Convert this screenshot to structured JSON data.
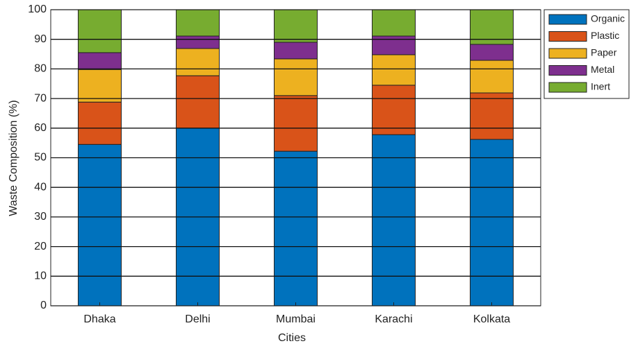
{
  "chart_data": {
    "type": "stacked_bar",
    "x_label": "Cities",
    "y_label": "Waste Composition (%)",
    "categories": [
      "Dhaka",
      "Delhi",
      "Mumbai",
      "Karachi",
      "Kolkata"
    ],
    "series": [
      {
        "name": "Organic",
        "color": "#0072BD",
        "values": [
          54.5,
          60,
          52.2,
          57.8,
          56.2
        ]
      },
      {
        "name": "Plastic",
        "color": "#D95319",
        "values": [
          14.3,
          17.7,
          18.8,
          16.7,
          15.7
        ]
      },
      {
        "name": "Paper",
        "color": "#EDB120",
        "values": [
          11,
          9.2,
          12.4,
          10.3,
          11
        ]
      },
      {
        "name": "Metal",
        "color": "#7E2F8E",
        "values": [
          5.7,
          4.2,
          5.6,
          6.3,
          5.4
        ]
      },
      {
        "name": "Inert",
        "color": "#77AC30",
        "values": [
          14.5,
          8.9,
          11,
          8.9,
          11.7
        ]
      }
    ],
    "ylim": [
      0,
      100
    ],
    "yticks": [
      0,
      10,
      20,
      30,
      40,
      50,
      60,
      70,
      80,
      90,
      100
    ],
    "grid": true,
    "legend": "upper right outside"
  }
}
